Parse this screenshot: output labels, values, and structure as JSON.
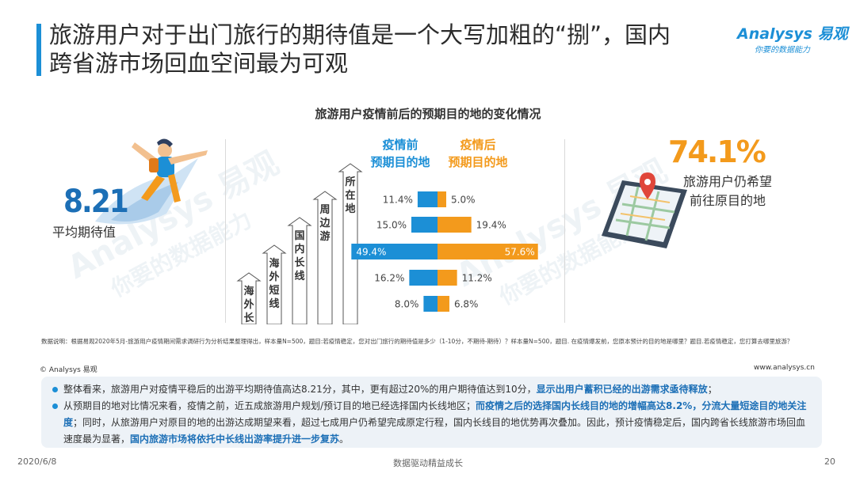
{
  "header": {
    "title_line1": "旅游用户对于出门旅行的期待值是一个大写加粗的“捌”，国内",
    "title_line2": "跨省游市场回血空间最为可观",
    "logo_main": "Analysys 易观",
    "logo_sub": "你要的数据能力"
  },
  "watermark_text": "Analysys 易观",
  "watermark_sub": "你要的数据能力",
  "kpi_left": {
    "value": "8.21",
    "label": "平均期待值"
  },
  "kpi_right": {
    "value": "74.1%",
    "label_line1": "旅游用户仍希望",
    "label_line2": "前往原目的地"
  },
  "legend": {
    "before_line1": "疫情前",
    "before_line2": "预期目的地",
    "after_line1": "疫情后",
    "after_line2": "预期目的地"
  },
  "colors": {
    "before": "#1c8fd6",
    "after": "#f39a1c",
    "accent": "#1c6fb6",
    "kpi_right": "#f39a1c"
  },
  "chart_data": {
    "type": "bar",
    "title": "旅游用户疫情前后的预期目的地的变化情况",
    "categories": [
      "所在地",
      "周边游",
      "国内长线",
      "海外短线",
      "海外长线"
    ],
    "series": [
      {
        "name": "疫情前 预期目的地",
        "values": [
          11.4,
          15.0,
          49.4,
          16.2,
          8.0
        ],
        "labels": [
          "11.4%",
          "15.0%",
          "49.4%",
          "16.2%",
          "8.0%"
        ]
      },
      {
        "name": "疫情后 预期目的地",
        "values": [
          5.0,
          19.4,
          57.6,
          11.2,
          6.8
        ],
        "labels": [
          "5.0%",
          "19.4%",
          "57.6%",
          "11.2%",
          "6.8%"
        ]
      }
    ]
  },
  "footnote": "数据说明：根据易观2020年5月-旅游用户疫情期间需求调研行为分析结果整理得出，样本量N=500，题目:若疫情稳定，您对出门旅行的期待值是多少（1-10分，不期待-期待）？样本量N=500，题目. 在疫情爆发前，您原本预计的目的地是哪里？题目.若疫情稳定，您打算去哪里旅游？",
  "copyright": "© Analysys 易观",
  "website": "www.analysys.cn",
  "summary": {
    "p1_a": "整体看来，旅游用户对疫情平稳后的出游平均期待值高达8.21分，其中，更有超过20%的用户期待值达到10分，",
    "p1_hl": "显示出用户蓄积已经的出游需求亟待释放",
    "p1_b": "；",
    "p2_a": "从预期目的地对比情况来看，疫情之前，近五成旅游用户规划/预订目的地已经选择国内长线地区；",
    "p2_hl": "而疫情之后的选择国内长线目的地的增幅高达8.2%，分流大量短途目的地关注度",
    "p2_b": "；同时，从旅游用户对原目的地的出游达成期望来看，超过七成用户仍希望完成原定行程，国内长线目的地优势再次叠加。因此，预计疫情稳定后，国内跨省长线旅游市场回血速度最为显著，",
    "p2_hl2": "国内旅游市场将依托中长线出游率提升进一步复苏",
    "p2_c": "。"
  },
  "footer": {
    "date": "2020/6/8",
    "center": "数据驱动精益成长",
    "page": "20"
  }
}
